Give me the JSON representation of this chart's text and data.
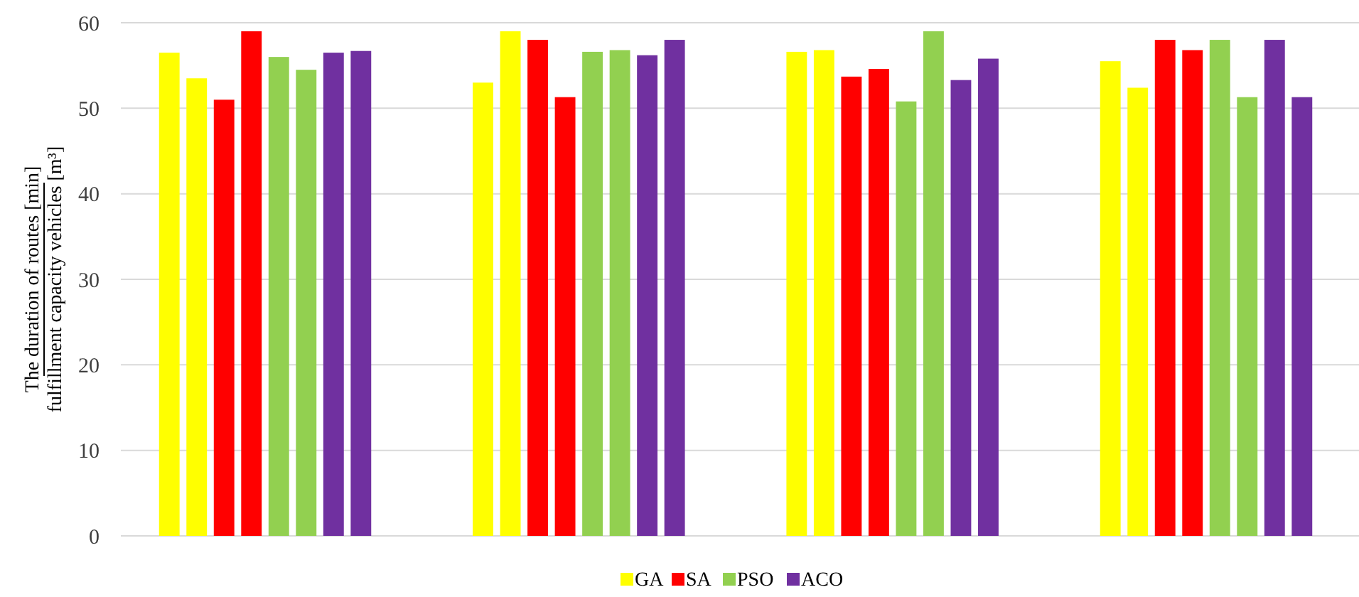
{
  "chart_data": {
    "type": "bar",
    "ylabel": "The duration of routes [min]\nfulfillment capacity vehicles [m³]",
    "categories": [
      null,
      null,
      null,
      null
    ],
    "series": [
      {
        "name": "GA",
        "color": "#ffff00",
        "values": [
          56.5,
          53,
          56.6,
          55.5
        ]
      },
      {
        "color": "#ffff00",
        "values": [
          53.5,
          59,
          56.8,
          52.4
        ]
      },
      {
        "name": "SA",
        "color": "#ff0000",
        "values": [
          51,
          58,
          53.7,
          58
        ]
      },
      {
        "color": "#ff0000",
        "values": [
          59,
          51.3,
          54.6,
          56.8
        ]
      },
      {
        "name": "PSO",
        "color": "#92d050",
        "values": [
          56,
          56.6,
          50.8,
          58
        ]
      },
      {
        "color": "#92d050",
        "values": [
          54.5,
          56.8,
          59,
          51.3
        ]
      },
      {
        "name": "ACO",
        "color": "#7030a0",
        "values": [
          56.5,
          56.2,
          53.3,
          58
        ]
      },
      {
        "color": "#7030a0",
        "values": [
          56.7,
          58,
          55.8,
          51.3
        ]
      }
    ],
    "ylim": [
      0,
      60
    ],
    "yticks": [
      0,
      10,
      20,
      30,
      40,
      50,
      60
    ],
    "grid": "y",
    "legend": "bottom"
  }
}
